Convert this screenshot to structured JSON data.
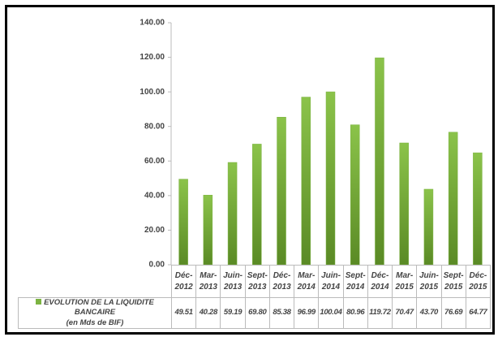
{
  "chart_data": {
    "type": "bar",
    "categories": [
      "Déc-2012",
      "Mar-2013",
      "Juin-2013",
      "Sept-2013",
      "Déc-2013",
      "Mar-2014",
      "Juin-2014",
      "Sept-2014",
      "Déc-2014",
      "Mar-2015",
      "Juin-2015",
      "Sept-2015",
      "Déc-2015"
    ],
    "series": [
      {
        "name": "EVOLUTION DE LA LIQUIDITE BANCAIRE",
        "unit_label": "(en Mds de BIF)",
        "color": "#7cb342",
        "values": [
          49.51,
          40.28,
          59.19,
          69.8,
          85.38,
          96.99,
          100.04,
          80.96,
          119.72,
          70.47,
          43.7,
          76.69,
          64.77
        ],
        "value_labels": [
          "49.51",
          "40.28",
          "59.19",
          "69.80",
          "85.38",
          "96.99",
          "100.04",
          "80.96",
          "119.72",
          "70.47",
          "43.70",
          "76.69",
          "64.77"
        ]
      }
    ],
    "ylim": [
      0,
      140
    ],
    "yticks": [
      {
        "value": 0,
        "label": "0.00"
      },
      {
        "value": 20,
        "label": "20.00"
      },
      {
        "value": 40,
        "label": "40.00"
      },
      {
        "value": 60,
        "label": "60.00"
      },
      {
        "value": 80,
        "label": "80.00"
      },
      {
        "value": 100,
        "label": "100.00"
      },
      {
        "value": 120,
        "label": "120.00"
      },
      {
        "value": 140,
        "label": "140.00"
      }
    ],
    "grid": false
  }
}
